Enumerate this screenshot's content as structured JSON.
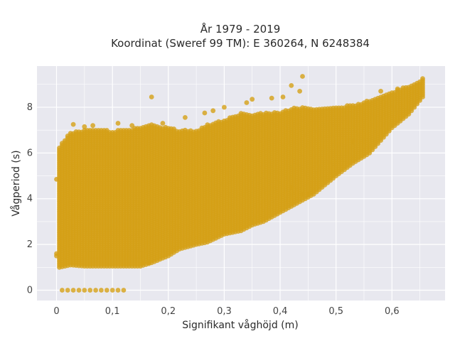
{
  "chart_data": {
    "type": "scatter",
    "title_line1": "År 1979 - 2019",
    "title_line2": "Koordinat (Sweref 99 TM): E 360264, N 6248384",
    "xlabel": "Signifikant våghöjd (m)",
    "ylabel": "Vågperiod (s)",
    "xlim": [
      -0.035,
      0.695
    ],
    "ylim": [
      -0.45,
      9.8
    ],
    "x_ticks": [
      0,
      0.1,
      0.2,
      0.3,
      0.4,
      0.5,
      0.6
    ],
    "x_tick_labels": [
      "0",
      "0,1",
      "0,2",
      "0,3",
      "0,4",
      "0,5",
      "0,6"
    ],
    "y_ticks": [
      0,
      2,
      4,
      6,
      8
    ],
    "y_tick_labels": [
      "0",
      "2",
      "4",
      "6",
      "8"
    ],
    "grid": true,
    "marker_color": "#D4A017",
    "plot_background": "#E8E8EF",
    "column_step": 0.005,
    "envelope": [
      [
        0.005,
        1.0,
        6.3
      ],
      [
        0.025,
        1.1,
        6.9
      ],
      [
        0.05,
        1.05,
        7.0
      ],
      [
        0.075,
        1.05,
        7.05
      ],
      [
        0.1,
        1.05,
        6.95
      ],
      [
        0.125,
        1.05,
        7.05
      ],
      [
        0.15,
        1.05,
        7.1
      ],
      [
        0.17,
        1.2,
        7.25
      ],
      [
        0.2,
        1.5,
        7.1
      ],
      [
        0.22,
        1.8,
        7.0
      ],
      [
        0.25,
        2.0,
        7.0
      ],
      [
        0.27,
        2.1,
        7.25
      ],
      [
        0.3,
        2.45,
        7.45
      ],
      [
        0.33,
        2.6,
        7.75
      ],
      [
        0.35,
        2.85,
        7.7
      ],
      [
        0.37,
        3.0,
        7.75
      ],
      [
        0.4,
        3.4,
        7.8
      ],
      [
        0.43,
        3.8,
        8.0
      ],
      [
        0.46,
        4.2,
        7.95
      ],
      [
        0.5,
        5.0,
        8.0
      ],
      [
        0.53,
        5.55,
        8.1
      ],
      [
        0.56,
        6.0,
        8.3
      ],
      [
        0.6,
        7.1,
        8.65
      ],
      [
        0.63,
        7.7,
        8.95
      ],
      [
        0.655,
        8.45,
        9.2
      ]
    ],
    "outliers": [
      [
        0.0,
        4.85
      ],
      [
        0.0,
        1.5
      ],
      [
        0.0,
        1.6
      ],
      [
        0.03,
        7.25
      ],
      [
        0.05,
        7.15
      ],
      [
        0.065,
        7.2
      ],
      [
        0.11,
        7.3
      ],
      [
        0.135,
        7.2
      ],
      [
        0.17,
        8.45
      ],
      [
        0.19,
        7.3
      ],
      [
        0.23,
        7.55
      ],
      [
        0.265,
        7.75
      ],
      [
        0.28,
        7.85
      ],
      [
        0.3,
        8.0
      ],
      [
        0.34,
        8.2
      ],
      [
        0.35,
        8.35
      ],
      [
        0.385,
        8.4
      ],
      [
        0.405,
        8.45
      ],
      [
        0.42,
        8.95
      ],
      [
        0.44,
        9.35
      ],
      [
        0.435,
        8.7
      ],
      [
        0.42,
        4.5
      ],
      [
        0.44,
        4.2
      ],
      [
        0.45,
        4.2
      ],
      [
        0.53,
        6.5
      ],
      [
        0.58,
        8.7
      ],
      [
        0.61,
        8.8
      ],
      [
        0.655,
        9.25
      ]
    ],
    "zero_period_points": [
      [
        0.01,
        0
      ],
      [
        0.02,
        0
      ],
      [
        0.03,
        0
      ],
      [
        0.04,
        0
      ],
      [
        0.05,
        0
      ],
      [
        0.06,
        0
      ],
      [
        0.07,
        0
      ],
      [
        0.08,
        0
      ],
      [
        0.09,
        0
      ],
      [
        0.1,
        0
      ],
      [
        0.11,
        0
      ],
      [
        0.12,
        0
      ]
    ],
    "low_extra_points": [
      [
        0.165,
        1.2
      ],
      [
        0.155,
        1.2
      ]
    ]
  }
}
